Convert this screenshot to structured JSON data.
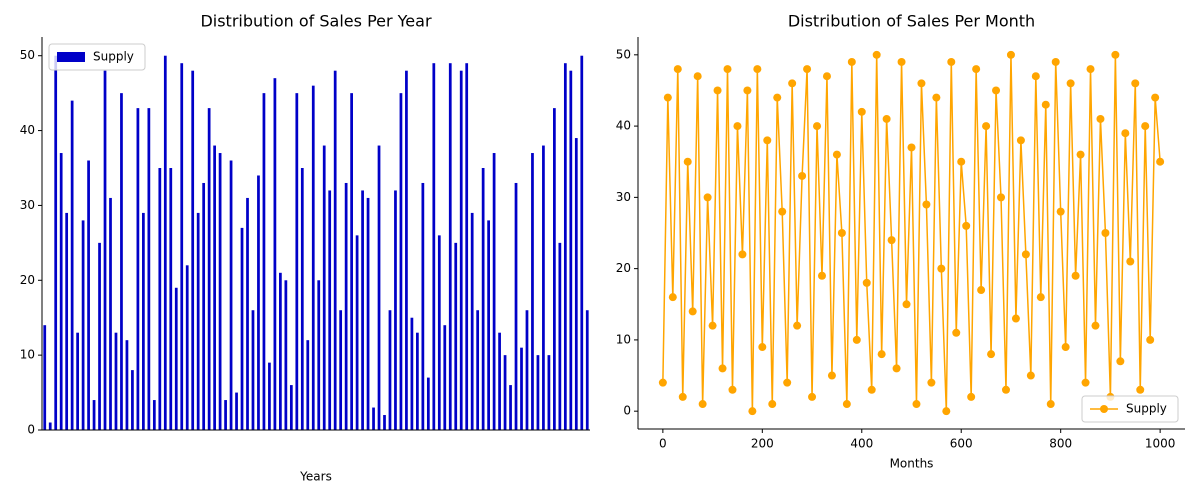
{
  "chart_data": [
    {
      "type": "bar",
      "title": "Distribution of Sales Per Year",
      "xlabel": "Years",
      "legend": "upper left",
      "ylim": [
        0,
        52.5
      ],
      "yticks": [
        0,
        10,
        20,
        30,
        40,
        50
      ],
      "series": [
        {
          "name": "Supply",
          "color": "#0000c8",
          "values": [
            14,
            1,
            50,
            37,
            29,
            44,
            13,
            28,
            36,
            4,
            25,
            48,
            31,
            13,
            45,
            12,
            8,
            43,
            29,
            43,
            4,
            35,
            50,
            35,
            19,
            49,
            22,
            48,
            29,
            33,
            43,
            38,
            37,
            4,
            36,
            5,
            27,
            31,
            16,
            34,
            45,
            9,
            47,
            21,
            20,
            6,
            45,
            35,
            12,
            46,
            20,
            38,
            32,
            48,
            16,
            33,
            45,
            26,
            32,
            31,
            3,
            38,
            2,
            16,
            32,
            45,
            48,
            15,
            13,
            33,
            7,
            49,
            26,
            14,
            49,
            25,
            48,
            49,
            29,
            16,
            35,
            28,
            37,
            13,
            10,
            6,
            33,
            11,
            16,
            37,
            10,
            38,
            10,
            43,
            25,
            49,
            48,
            39,
            50,
            16
          ]
        }
      ]
    },
    {
      "type": "line",
      "title": "Distribution of Sales Per Month",
      "xlabel": "Months",
      "legend": "lower right",
      "xlim": [
        -50,
        1050
      ],
      "xticks": [
        0,
        200,
        400,
        600,
        800,
        1000
      ],
      "ylim": [
        -2.5,
        52.5
      ],
      "yticks": [
        0,
        10,
        20,
        30,
        40,
        50
      ],
      "x": [
        0,
        10,
        20,
        30,
        40,
        50,
        60,
        70,
        80,
        90,
        100,
        110,
        120,
        130,
        140,
        150,
        160,
        170,
        180,
        190,
        200,
        210,
        220,
        230,
        240,
        250,
        260,
        270,
        280,
        290,
        300,
        310,
        320,
        330,
        340,
        350,
        360,
        370,
        380,
        390,
        400,
        410,
        420,
        430,
        440,
        450,
        460,
        470,
        480,
        490,
        500,
        510,
        520,
        530,
        540,
        550,
        560,
        570,
        580,
        590,
        600,
        610,
        620,
        630,
        640,
        650,
        660,
        670,
        680,
        690,
        700,
        710,
        720,
        730,
        740,
        750,
        760,
        770,
        780,
        790,
        800,
        810,
        820,
        830,
        840,
        850,
        860,
        870,
        880,
        890,
        900,
        910,
        920,
        930,
        940,
        950,
        960,
        970,
        980,
        990,
        1000
      ],
      "series": [
        {
          "name": "Supply",
          "color": "#ffa500",
          "values": [
            4,
            44,
            16,
            48,
            2,
            35,
            14,
            47,
            1,
            30,
            12,
            45,
            6,
            48,
            3,
            40,
            22,
            45,
            0,
            48,
            9,
            38,
            1,
            44,
            28,
            4,
            46,
            12,
            33,
            48,
            2,
            40,
            19,
            47,
            5,
            36,
            25,
            1,
            49,
            10,
            42,
            18,
            3,
            50,
            8,
            41,
            24,
            6,
            49,
            15,
            37,
            1,
            46,
            29,
            4,
            44,
            20,
            0,
            49,
            11,
            35,
            26,
            2,
            48,
            17,
            40,
            8,
            45,
            30,
            3,
            50,
            13,
            38,
            22,
            5,
            47,
            16,
            43,
            1,
            49,
            28,
            9,
            46,
            19,
            36,
            4,
            48,
            12,
            41,
            25,
            2,
            50,
            7,
            39,
            21,
            46,
            3,
            40,
            10,
            44,
            35
          ]
        }
      ]
    }
  ]
}
